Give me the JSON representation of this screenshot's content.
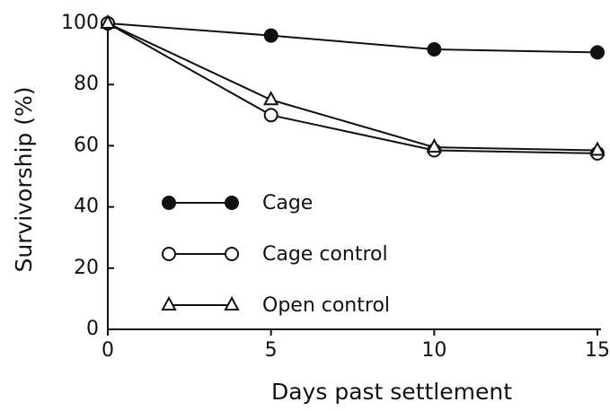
{
  "chart_data": {
    "type": "line",
    "x_label": "Days past settlement",
    "y_label": "Survivorship (%)",
    "x": [
      0,
      5,
      10,
      15
    ],
    "series": [
      {
        "name": "Cage",
        "color": "#111111",
        "marker": "filled-circle",
        "values": [
          100,
          96,
          91.5,
          90.5
        ]
      },
      {
        "name": "Cage control",
        "color": "#111111",
        "marker": "open-circle",
        "values": [
          100,
          70,
          58.5,
          57.5
        ]
      },
      {
        "name": "Open control",
        "color": "#111111",
        "marker": "open-triangle",
        "values": [
          100,
          75,
          59.5,
          58.5
        ]
      }
    ],
    "xlim": [
      0,
      15
    ],
    "xticks": [
      0,
      5,
      10,
      15
    ],
    "ylim": [
      0,
      100
    ],
    "yticks": [
      0,
      20,
      40,
      60,
      80,
      100
    ],
    "legend": "lower-left",
    "grid": false
  }
}
